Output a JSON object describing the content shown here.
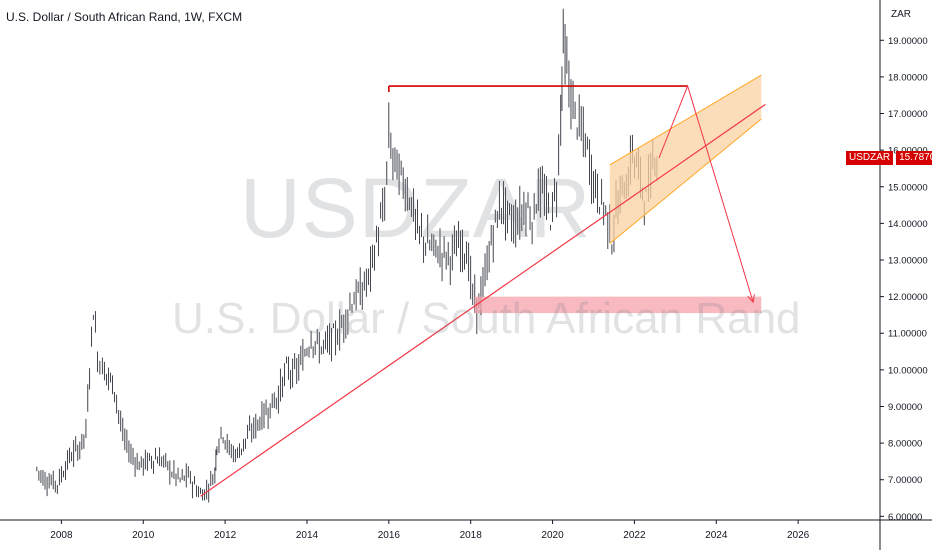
{
  "header": {
    "title": "U.S. Dollar / South African Rand, 1W, FXCM"
  },
  "watermark": {
    "symbol": "USDZAR",
    "name": "U.S. Dollar / South African Rand"
  },
  "price_scale": {
    "unit": "ZAR"
  },
  "last_price": {
    "symbol": "USDZAR",
    "value": "15.78700",
    "color": "#d50000"
  },
  "colors": {
    "candle": "#131722",
    "trendline": "#f23645",
    "zone_fill": "#f7a1ab",
    "channel_fill": "#fbd2a3",
    "channel_line": "#ffa726",
    "arrow": "#f23645"
  },
  "chart_data": {
    "type": "line",
    "title": "U.S. Dollar / South African Rand, 1W, FXCM",
    "xlabel": "",
    "ylabel": "",
    "xlim": [
      2006.5,
      2028.0
    ],
    "ylim": [
      5.9,
      20.1
    ],
    "x_ticks": [
      "2008",
      "2010",
      "2012",
      "2014",
      "2016",
      "2018",
      "2020",
      "2022",
      "2024",
      "2026"
    ],
    "y_ticks": [
      "6.00000",
      "7.00000",
      "8.00000",
      "9.00000",
      "10.00000",
      "11.00000",
      "12.00000",
      "13.00000",
      "14.00000",
      "15.00000",
      "16.00000",
      "17.00000",
      "18.00000",
      "19.00000"
    ],
    "grid": false,
    "series": [
      {
        "values": [
          [
            2007.4,
            7.3
          ],
          [
            2007.6,
            7.0
          ],
          [
            2007.9,
            6.9
          ],
          [
            2008.2,
            7.6
          ],
          [
            2008.45,
            7.9
          ],
          [
            2008.6,
            8.3
          ],
          [
            2008.78,
            11.7
          ],
          [
            2008.88,
            10.4
          ],
          [
            2009.0,
            10.1
          ],
          [
            2009.15,
            9.8
          ],
          [
            2009.3,
            9.5
          ],
          [
            2009.5,
            8.2
          ],
          [
            2009.7,
            7.7
          ],
          [
            2009.9,
            7.4
          ],
          [
            2010.1,
            7.5
          ],
          [
            2010.3,
            7.6
          ],
          [
            2010.5,
            7.5
          ],
          [
            2010.7,
            7.2
          ],
          [
            2010.9,
            7.0
          ],
          [
            2011.1,
            7.1
          ],
          [
            2011.3,
            6.75
          ],
          [
            2011.4,
            6.6
          ],
          [
            2011.55,
            6.7
          ],
          [
            2011.75,
            7.2
          ],
          [
            2011.8,
            8.0
          ],
          [
            2011.95,
            8.3
          ],
          [
            2012.1,
            7.8
          ],
          [
            2012.3,
            7.7
          ],
          [
            2012.5,
            8.1
          ],
          [
            2012.7,
            8.4
          ],
          [
            2012.9,
            8.7
          ],
          [
            2013.1,
            9.0
          ],
          [
            2013.3,
            9.3
          ],
          [
            2013.5,
            10.0
          ],
          [
            2013.7,
            9.9
          ],
          [
            2013.9,
            10.3
          ],
          [
            2014.1,
            10.9
          ],
          [
            2014.3,
            10.6
          ],
          [
            2014.5,
            10.7
          ],
          [
            2014.7,
            10.9
          ],
          [
            2014.9,
            11.3
          ],
          [
            2015.1,
            11.9
          ],
          [
            2015.3,
            12.1
          ],
          [
            2015.5,
            12.5
          ],
          [
            2015.7,
            13.5
          ],
          [
            2015.9,
            14.5
          ],
          [
            2016.0,
            16.4
          ],
          [
            2016.1,
            15.8
          ],
          [
            2016.2,
            15.5
          ],
          [
            2016.4,
            15.0
          ],
          [
            2016.55,
            14.6
          ],
          [
            2016.7,
            13.8
          ],
          [
            2016.9,
            13.5
          ],
          [
            2017.1,
            13.3
          ],
          [
            2017.3,
            13.2
          ],
          [
            2017.5,
            13.1
          ],
          [
            2017.7,
            13.4
          ],
          [
            2017.9,
            13.3
          ],
          [
            2018.05,
            12.0
          ],
          [
            2018.15,
            11.7
          ],
          [
            2018.3,
            12.2
          ],
          [
            2018.45,
            13.2
          ],
          [
            2018.6,
            14.0
          ],
          [
            2018.75,
            14.6
          ],
          [
            2018.9,
            14.2
          ],
          [
            2019.05,
            14.0
          ],
          [
            2019.2,
            14.2
          ],
          [
            2019.35,
            14.5
          ],
          [
            2019.5,
            14.1
          ],
          [
            2019.65,
            14.9
          ],
          [
            2019.8,
            14.7
          ],
          [
            2019.95,
            14.2
          ],
          [
            2020.1,
            15.0
          ],
          [
            2020.2,
            17.0
          ],
          [
            2020.26,
            19.0
          ],
          [
            2020.35,
            18.2
          ],
          [
            2020.45,
            17.4
          ],
          [
            2020.55,
            17.0
          ],
          [
            2020.7,
            16.5
          ],
          [
            2020.85,
            16.0
          ],
          [
            2020.95,
            15.4
          ],
          [
            2021.1,
            14.8
          ],
          [
            2021.25,
            14.5
          ],
          [
            2021.35,
            14.1
          ],
          [
            2021.45,
            13.6
          ],
          [
            2021.55,
            14.3
          ],
          [
            2021.7,
            14.9
          ],
          [
            2021.85,
            15.2
          ],
          [
            2021.95,
            16.0
          ],
          [
            2022.1,
            15.4
          ],
          [
            2022.2,
            15.0
          ],
          [
            2022.28,
            14.6
          ],
          [
            2022.4,
            15.3
          ],
          [
            2022.5,
            16.0
          ],
          [
            2022.6,
            15.787
          ]
        ]
      }
    ],
    "annotations": {
      "trendline": [
        [
          2011.4,
          6.55
        ],
        [
          2025.2,
          17.25
        ]
      ],
      "resistance_line": {
        "y": 17.75,
        "x": [
          2016.0,
          2023.3
        ]
      },
      "support_zone": {
        "y": [
          11.55,
          12.0
        ],
        "x": [
          2018.1,
          2025.1
        ]
      },
      "channel": {
        "lower": [
          [
            2021.4,
            13.45
          ],
          [
            2025.1,
            16.85
          ]
        ],
        "upper": [
          [
            2021.4,
            15.6
          ],
          [
            2025.1,
            18.05
          ]
        ]
      },
      "projection": [
        [
          2022.6,
          15.787
        ],
        [
          2023.3,
          17.75
        ],
        [
          2024.9,
          11.85
        ]
      ]
    }
  }
}
